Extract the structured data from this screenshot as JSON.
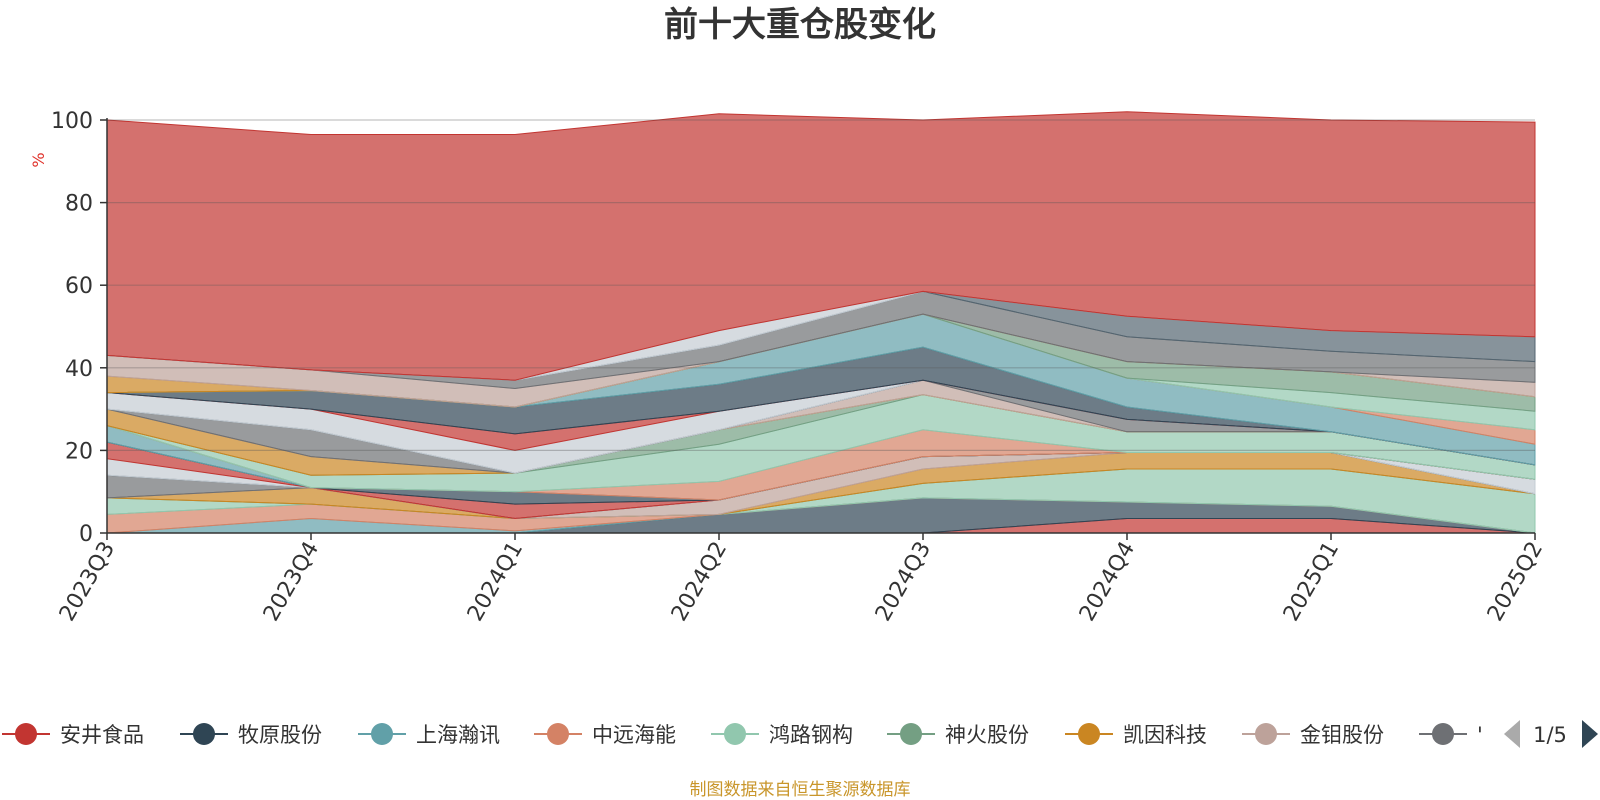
{
  "chart_data": {
    "type": "area",
    "stacked": true,
    "title": "前十大重仓股变化",
    "y_unit": "%",
    "ylim": [
      0,
      100
    ],
    "yticks": [
      "0",
      "20",
      "40",
      "60",
      "80",
      "100"
    ],
    "categories": [
      "2023Q3",
      "2023Q4",
      "2024Q1",
      "2024Q2",
      "2024Q3",
      "2024Q4",
      "2025Q1",
      "2025Q2"
    ],
    "grid": true,
    "legend_position": "bottom",
    "series": [
      {
        "name": "安井食品",
        "color": "#c23531",
        "values": [
          0,
          0,
          0,
          0,
          0,
          3.5,
          3.5,
          0
        ]
      },
      {
        "name": "牧原股份",
        "color": "#2f4554",
        "values": [
          0,
          0,
          0,
          4.5,
          8.5,
          4,
          3,
          0
        ]
      },
      {
        "name": "上海瀚讯",
        "color": "#61a0a8",
        "values": [
          0,
          3.5,
          0.5,
          0,
          0,
          0,
          0,
          0
        ]
      },
      {
        "name": "中远海能",
        "color": "#d48265",
        "values": [
          4.5,
          3.5,
          3,
          0,
          0,
          0,
          0,
          0
        ]
      },
      {
        "name": "鸿路钢构",
        "color": "#91c7ae",
        "values": [
          4,
          0,
          0,
          0,
          3.5,
          8,
          9,
          9.5
        ]
      },
      {
        "name": "神火股份",
        "color": "#749f83",
        "values": [
          0,
          0,
          0,
          0,
          0,
          0,
          0,
          0
        ]
      },
      {
        "name": "凯因科技",
        "color": "#ca8622",
        "values": [
          0,
          4,
          0,
          0,
          3.5,
          4,
          4,
          0
        ]
      },
      {
        "name": "金钼股份",
        "color": "#bda29a",
        "values": [
          0,
          0,
          0,
          3.5,
          3,
          0,
          0,
          0
        ]
      },
      {
        "name": "—",
        "color": "#6e7074",
        "values": [
          5.5,
          0,
          0,
          0,
          0,
          0,
          0,
          0
        ]
      },
      {
        "name": "—",
        "color": "#546570",
        "values": [
          0,
          0,
          0,
          0,
          0,
          0,
          0,
          0
        ]
      },
      {
        "name": "—",
        "color": "#c4ccd3",
        "values": [
          4,
          0,
          0,
          0,
          0,
          0,
          0,
          3.5
        ]
      },
      {
        "name": "—",
        "color": "#c23531",
        "values": [
          4,
          0,
          3.5,
          0,
          0,
          0,
          0,
          0
        ]
      },
      {
        "name": "—",
        "color": "#2f4554",
        "values": [
          0,
          0,
          3,
          0,
          0,
          0,
          0,
          0
        ]
      },
      {
        "name": "—",
        "color": "#61a0a8",
        "values": [
          4,
          0,
          0,
          0,
          0,
          0,
          0,
          0
        ]
      },
      {
        "name": "—",
        "color": "#d48265",
        "values": [
          0,
          0,
          0,
          4.5,
          6.5,
          0,
          0,
          0
        ]
      },
      {
        "name": "—",
        "color": "#91c7ae",
        "values": [
          0,
          3,
          4.5,
          9,
          8.5,
          5,
          5,
          3.5
        ]
      },
      {
        "name": "—",
        "color": "#749f83",
        "values": [
          0,
          0,
          0,
          3.5,
          0,
          0,
          0,
          0
        ]
      },
      {
        "name": "—",
        "color": "#ca8622",
        "values": [
          4,
          4.5,
          0,
          0,
          0,
          0,
          0,
          0
        ]
      },
      {
        "name": "—",
        "color": "#bda29a",
        "values": [
          0,
          0,
          0,
          0,
          3.5,
          0,
          0,
          0
        ]
      },
      {
        "name": "—",
        "color": "#6e7074",
        "values": [
          0,
          6.5,
          0,
          0,
          0,
          3,
          0,
          0
        ]
      },
      {
        "name": "—",
        "color": "#546570",
        "values": [
          0,
          0,
          0,
          0,
          0,
          0,
          0,
          0
        ]
      },
      {
        "name": "—",
        "color": "#c4ccd3",
        "values": [
          4,
          5,
          5.5,
          4.5,
          0,
          0,
          0,
          0
        ]
      },
      {
        "name": "—",
        "color": "#c23531",
        "values": [
          0,
          0,
          4,
          0,
          0,
          0,
          0,
          0
        ]
      },
      {
        "name": "—",
        "color": "#2f4554",
        "values": [
          0,
          4.5,
          6.5,
          6.5,
          8,
          3,
          0,
          0
        ]
      },
      {
        "name": "—",
        "color": "#61a0a8",
        "values": [
          0,
          0,
          0,
          5.5,
          8,
          7,
          6,
          5
        ]
      },
      {
        "name": "—",
        "color": "#d48265",
        "values": [
          0,
          0,
          0,
          0,
          0,
          0,
          0,
          3.5
        ]
      },
      {
        "name": "—",
        "color": "#91c7ae",
        "values": [
          0,
          0,
          0,
          0,
          0,
          0,
          3.5,
          4.5
        ]
      },
      {
        "name": "—",
        "color": "#749f83",
        "values": [
          0,
          0,
          0,
          0,
          0,
          4,
          5,
          3.5
        ]
      },
      {
        "name": "—",
        "color": "#ca8622",
        "values": [
          4,
          0,
          0,
          0,
          0,
          0,
          0,
          0
        ]
      },
      {
        "name": "—",
        "color": "#bda29a",
        "values": [
          5,
          5,
          4.5,
          0,
          0,
          0,
          0,
          3.5
        ]
      },
      {
        "name": "—",
        "color": "#6e7074",
        "values": [
          0,
          0,
          2,
          4,
          5.5,
          6,
          5,
          5
        ]
      },
      {
        "name": "—",
        "color": "#546570",
        "values": [
          0,
          0,
          0,
          0,
          0,
          5,
          5,
          6
        ]
      },
      {
        "name": "—",
        "color": "#c4ccd3",
        "values": [
          0,
          0,
          0,
          3.5,
          0,
          0,
          0,
          0
        ]
      },
      {
        "name": "—",
        "color": "#c23531",
        "values": [
          57,
          57,
          59.5,
          52.5,
          41.5,
          49.5,
          51,
          52
        ]
      }
    ]
  },
  "legend": {
    "items": [
      {
        "name": "安井食品",
        "color": "#c23531"
      },
      {
        "name": "牧原股份",
        "color": "#2f4554"
      },
      {
        "name": "上海瀚讯",
        "color": "#61a0a8"
      },
      {
        "name": "中远海能",
        "color": "#d48265"
      },
      {
        "name": "鸿路钢构",
        "color": "#91c7ae"
      },
      {
        "name": "神火股份",
        "color": "#749f83"
      },
      {
        "name": "凯因科技",
        "color": "#ca8622"
      },
      {
        "name": "金钼股份",
        "color": "#bda29a"
      },
      {
        "name": "'",
        "color": "#6e7074"
      }
    ],
    "page_indicator": "1/5",
    "prev_icon": "triangle-left",
    "next_icon": "triangle-right"
  },
  "footer": {
    "source": "制图数据来自恒生聚源数据库"
  }
}
